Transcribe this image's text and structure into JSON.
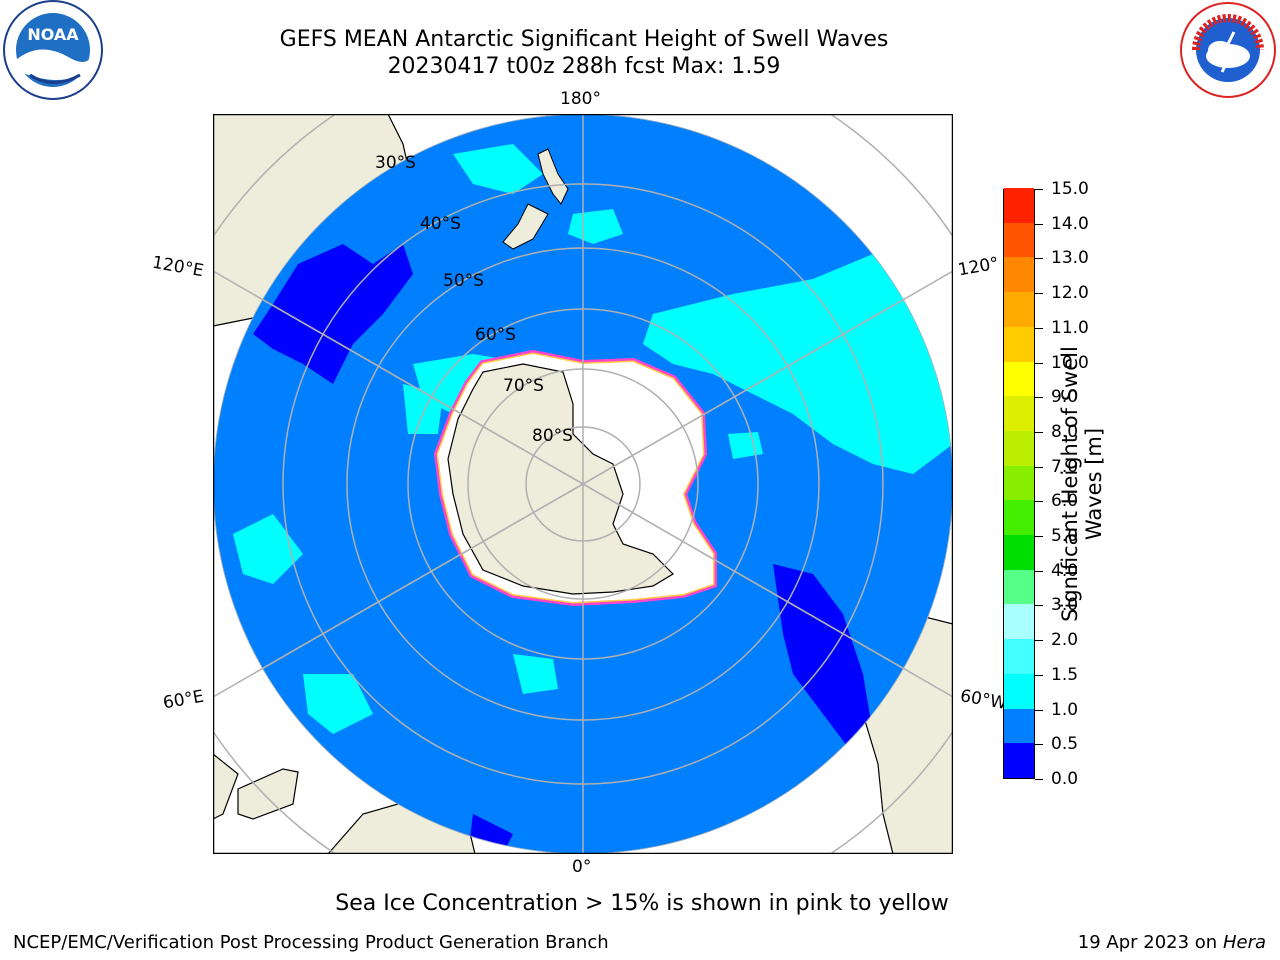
{
  "header": {
    "title_line1": "GEFS MEAN Antarctic Significant Height of Swell Waves",
    "title_line2": "20230417 t00z 288h fcst   Max: 1.59"
  },
  "logos": {
    "left": "NOAA",
    "left_ring": "NATIONAL OCEANIC AND ATMOSPHERIC ADMINISTRATION · U.S. DEPARTMENT OF COMMERCE",
    "right_ring": "NATIONAL WEATHER SERVICE"
  },
  "map": {
    "projection": "South Polar Stereographic",
    "meridian_labels": {
      "top": "180°",
      "bottom": "0°",
      "left_upper": "120°E",
      "left_lower": "60°E",
      "right_upper": "120°",
      "right_lower": "60°W"
    },
    "latitude_labels": [
      "30°S",
      "40°S",
      "50°S",
      "60°S",
      "70°S",
      "80°S"
    ],
    "colors": {
      "land": "#eeecdb",
      "ocean_main": "#0080ff",
      "ocean_low": "#0000ff",
      "swell_1_5": "#00ffff",
      "ice_edge": "#ff44cc",
      "ice_inner": "#ffcc44",
      "grid": "#b0b0b0"
    }
  },
  "colorbar": {
    "title_line1": "Significant Height of Swell",
    "title_line2": "Waves [m]",
    "ticks": [
      "0.0",
      "0.5",
      "1.0",
      "1.5",
      "2.0",
      "3.0",
      "4.0",
      "5.0",
      "6.0",
      "7.0",
      "8.0",
      "9.0",
      "10.0",
      "11.0",
      "12.0",
      "13.0",
      "14.0",
      "15.0"
    ],
    "colors": [
      "#0000ff",
      "#0080ff",
      "#00ffff",
      "#44ffff",
      "#aaffff",
      "#55ff88",
      "#00dd00",
      "#44ee00",
      "#88ee00",
      "#bbee00",
      "#ddee00",
      "#ffff00",
      "#ffcc00",
      "#ffaa00",
      "#ff8800",
      "#ff5500",
      "#ff2200",
      "#ff0000"
    ]
  },
  "caption": "Sea Ice Concentration > 15% is shown in pink to yellow",
  "footer": {
    "left": "NCEP/EMC/Verification Post Processing Product Generation Branch",
    "right_prefix": "19 Apr 2023 on ",
    "right_italic": "Hera"
  }
}
